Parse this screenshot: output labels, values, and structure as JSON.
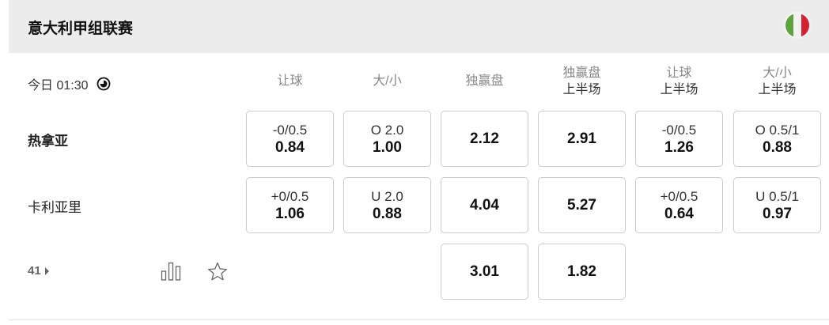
{
  "league": {
    "title": "意大利甲组联赛",
    "flag": "italy-flag",
    "flag_colors": [
      "#5ea33c",
      "#f2f2f2",
      "#d9202f"
    ]
  },
  "match": {
    "time": "今日 01:30",
    "more_count": "41"
  },
  "columns": [
    {
      "top": "让球",
      "sub": ""
    },
    {
      "top": "大/小",
      "sub": ""
    },
    {
      "top": "独赢盘",
      "sub": ""
    },
    {
      "top": "独赢盘",
      "sub": "上半场"
    },
    {
      "top": "让球",
      "sub": "上半场"
    },
    {
      "top": "大/小",
      "sub": "上半场"
    }
  ],
  "rows": [
    {
      "team": "热拿亚",
      "bold": true,
      "cells": [
        {
          "line": "-0/0.5",
          "odds": "0.84"
        },
        {
          "line": "O 2.0",
          "odds": "1.00"
        },
        {
          "line": "",
          "odds": "2.12"
        },
        {
          "line": "",
          "odds": "2.91"
        },
        {
          "line": "-0/0.5",
          "odds": "1.26"
        },
        {
          "line": "O 0.5/1",
          "odds": "0.88"
        }
      ]
    },
    {
      "team": "卡利亚里",
      "bold": false,
      "cells": [
        {
          "line": "+0/0.5",
          "odds": "1.06"
        },
        {
          "line": "U 2.0",
          "odds": "0.88"
        },
        {
          "line": "",
          "odds": "4.04"
        },
        {
          "line": "",
          "odds": "5.27"
        },
        {
          "line": "+0/0.5",
          "odds": "0.64"
        },
        {
          "line": "U 0.5/1",
          "odds": "0.97"
        }
      ]
    }
  ],
  "draw": {
    "cells": [
      {
        "odds": "3.01"
      },
      {
        "odds": "1.82"
      }
    ]
  }
}
